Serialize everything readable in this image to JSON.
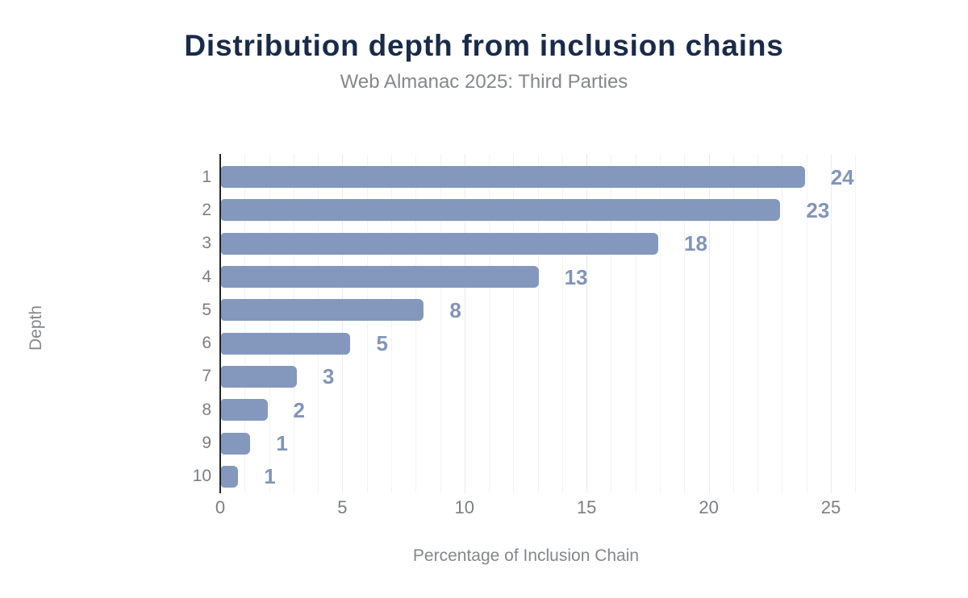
{
  "header": {
    "title": "Distribution depth from inclusion chains",
    "subtitle": "Web Almanac 2025: Third Parties"
  },
  "chart_data": {
    "type": "bar",
    "orientation": "horizontal",
    "title": "Distribution depth from inclusion chains",
    "subtitle": "Web Almanac 2025: Third Parties",
    "categories": [
      "1",
      "2",
      "3",
      "4",
      "5",
      "6",
      "7",
      "8",
      "9",
      "10"
    ],
    "values": [
      23.9,
      22.9,
      17.9,
      13.0,
      8.3,
      5.3,
      3.1,
      1.9,
      1.2,
      0.7
    ],
    "value_labels": [
      "24",
      "23",
      "18",
      "13",
      "8",
      "5",
      "3",
      "2",
      "1",
      "1"
    ],
    "xlabel": "Percentage of Inclusion Chain",
    "ylabel": "Depth",
    "xlim": [
      0,
      26
    ],
    "x_ticks": [
      0,
      5,
      10,
      15,
      20,
      25
    ],
    "grid": "vertical-minor-every-1",
    "legend": "none",
    "colors": {
      "bar": "#8398bc",
      "value_label": "#8095ba",
      "title": "#1a2b49",
      "secondary_text": "#85878a",
      "tick_text": "#7b7e82",
      "axis_line": "#222426",
      "gridline_minor": "#f3f3f5",
      "gridline_major": "#ebebee",
      "background": "#ffffff"
    }
  }
}
